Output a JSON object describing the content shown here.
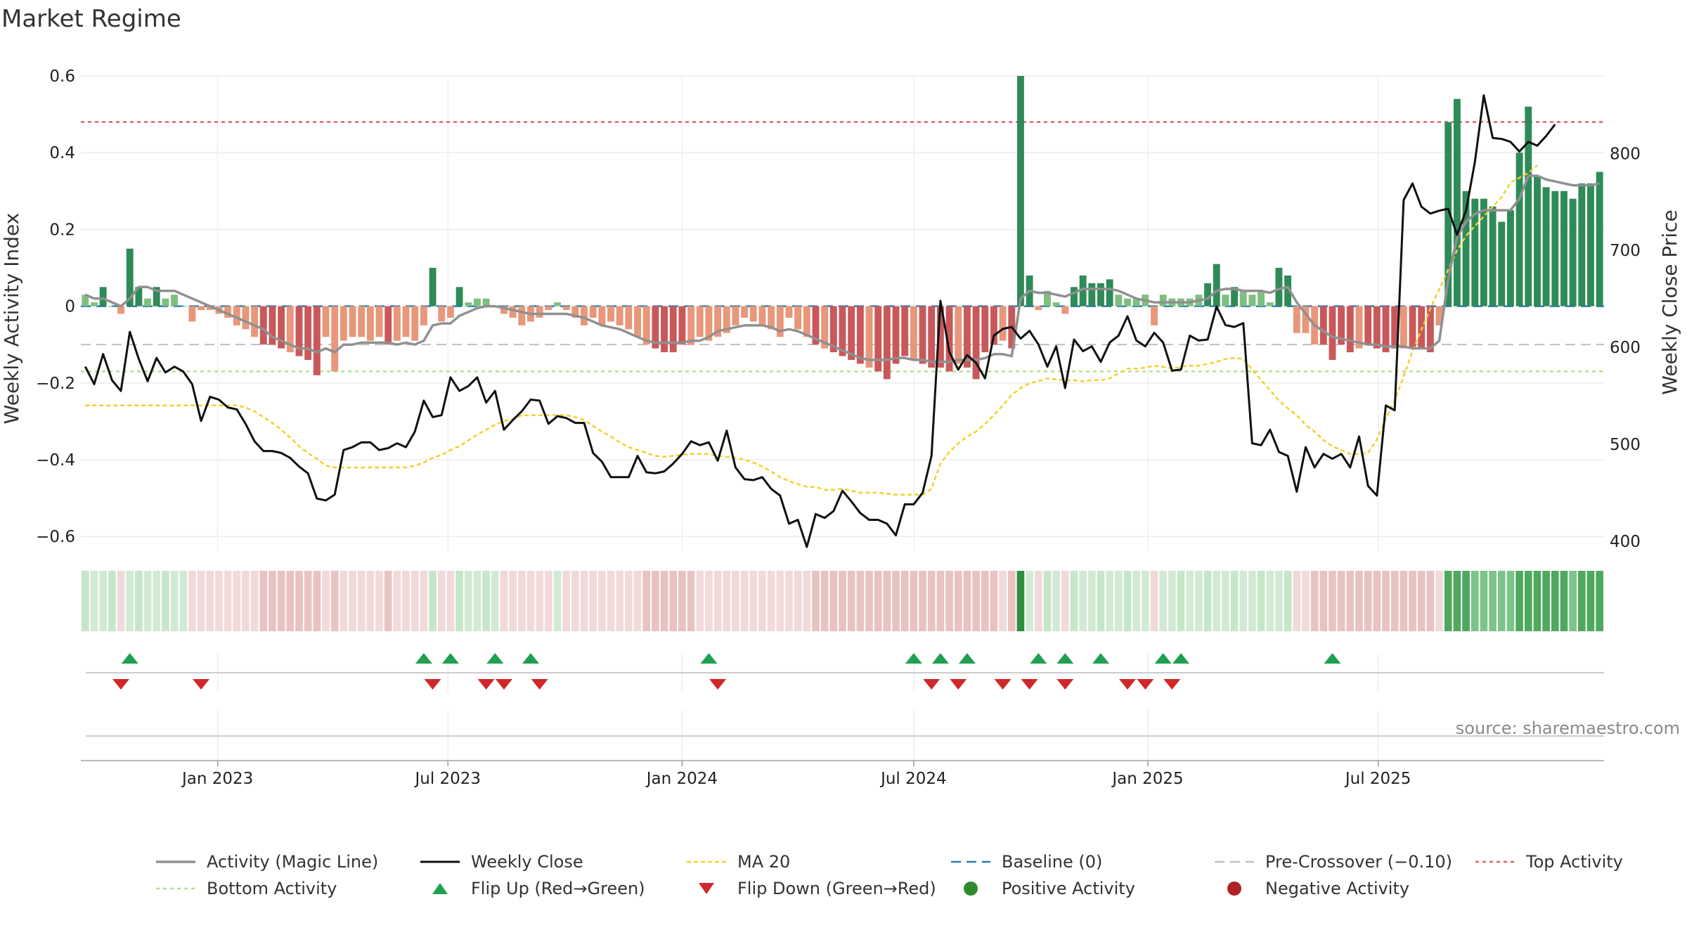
{
  "chart_data": {
    "type": "bar+line",
    "title": "Market Regime",
    "ylabel": "Weekly Activity Index",
    "y2label": "Weekly Close Price",
    "source": "source: sharemaestro.com",
    "ylim": [
      -0.64,
      0.6
    ],
    "y2lim": [
      389,
      880
    ],
    "yticks": [
      0.6,
      0.4,
      0.2,
      0,
      -0.2,
      -0.4,
      -0.6
    ],
    "ytick_labels": [
      "0.6",
      "0.4",
      "0.2",
      "0",
      "−0.2",
      "−0.4",
      "−0.6"
    ],
    "y2ticks": [
      800,
      700,
      600,
      500,
      400
    ],
    "y2tick_labels": [
      "800",
      "700",
      "600",
      "500",
      "400"
    ],
    "x_start": "2022-09-19",
    "week_interval_days": 7,
    "xticks": [
      {
        "date": "2023-01-01",
        "label": "Jan 2023"
      },
      {
        "date": "2023-07-01",
        "label": "Jul 2023"
      },
      {
        "date": "2024-01-01",
        "label": "Jan 2024"
      },
      {
        "date": "2024-07-01",
        "label": "Jul 2024"
      },
      {
        "date": "2025-01-01",
        "label": "Jan 2025"
      },
      {
        "date": "2025-07-01",
        "label": "Jul 2025"
      }
    ],
    "activity": [
      0.03,
      0.01,
      0.05,
      0,
      -0.02,
      0.15,
      0.05,
      0.02,
      0.05,
      0.02,
      0.03,
      0,
      -0.04,
      -0.01,
      -0.01,
      -0.02,
      -0.03,
      -0.05,
      -0.06,
      -0.08,
      -0.1,
      -0.1,
      -0.11,
      -0.12,
      -0.13,
      -0.14,
      -0.18,
      -0.08,
      -0.17,
      -0.09,
      -0.08,
      -0.08,
      -0.09,
      -0.08,
      -0.1,
      -0.09,
      -0.08,
      -0.09,
      -0.05,
      0.1,
      -0.04,
      -0.03,
      0.05,
      0.01,
      0.02,
      0.02,
      0,
      -0.02,
      -0.03,
      -0.05,
      -0.04,
      -0.03,
      -0.01,
      0.01,
      -0.01,
      -0.03,
      -0.05,
      -0.03,
      -0.05,
      -0.04,
      -0.05,
      -0.06,
      -0.08,
      -0.1,
      -0.11,
      -0.12,
      -0.12,
      -0.1,
      -0.1,
      -0.08,
      -0.09,
      -0.08,
      -0.07,
      -0.05,
      -0.03,
      -0.04,
      -0.05,
      -0.06,
      -0.08,
      -0.03,
      -0.06,
      -0.08,
      -0.1,
      -0.11,
      -0.12,
      -0.13,
      -0.14,
      -0.15,
      -0.16,
      -0.17,
      -0.19,
      -0.15,
      -0.13,
      -0.14,
      -0.15,
      -0.16,
      -0.16,
      -0.17,
      -0.15,
      -0.16,
      -0.19,
      -0.12,
      -0.1,
      -0.09,
      -0.11,
      0.6,
      0.08,
      -0.01,
      0.04,
      0.01,
      -0.02,
      0.05,
      0.08,
      0.06,
      0.06,
      0.07,
      0.03,
      0.02,
      0.02,
      0.03,
      -0.05,
      0.03,
      0.02,
      0.02,
      0.02,
      0.03,
      0.06,
      0.11,
      0.03,
      0.05,
      0.04,
      0.03,
      0.04,
      0.01,
      0.1,
      0.08,
      -0.07,
      -0.07,
      -0.1,
      -0.1,
      -0.14,
      -0.1,
      -0.12,
      -0.11,
      -0.1,
      -0.11,
      -0.12,
      -0.11,
      -0.11,
      -0.11,
      -0.11,
      -0.12,
      -0.05,
      0.48,
      0.54,
      0.3,
      0.28,
      0.28,
      0.26,
      0.22,
      0.25,
      0.4,
      0.52,
      0.34,
      0.31,
      0.3,
      0.3,
      0.28,
      0.32,
      0.32,
      0.35
    ],
    "magic_line": [
      0.03,
      0.02,
      0.02,
      0.01,
      0,
      0.02,
      0.05,
      0.05,
      0.04,
      0.04,
      0.04,
      0.03,
      0.02,
      0.01,
      0,
      -0.01,
      -0.02,
      -0.03,
      -0.04,
      -0.05,
      -0.06,
      -0.08,
      -0.09,
      -0.1,
      -0.11,
      -0.11,
      -0.12,
      -0.11,
      -0.12,
      -0.1,
      -0.1,
      -0.095,
      -0.095,
      -0.095,
      -0.095,
      -0.1,
      -0.095,
      -0.1,
      -0.09,
      -0.05,
      -0.045,
      -0.045,
      -0.025,
      -0.015,
      -0.005,
      0,
      0,
      -0.005,
      -0.01,
      -0.015,
      -0.02,
      -0.02,
      -0.02,
      -0.02,
      -0.02,
      -0.025,
      -0.03,
      -0.04,
      -0.05,
      -0.055,
      -0.06,
      -0.07,
      -0.08,
      -0.09,
      -0.095,
      -0.095,
      -0.095,
      -0.095,
      -0.09,
      -0.09,
      -0.08,
      -0.065,
      -0.06,
      -0.055,
      -0.05,
      -0.05,
      -0.05,
      -0.055,
      -0.065,
      -0.06,
      -0.065,
      -0.075,
      -0.085,
      -0.095,
      -0.105,
      -0.115,
      -0.125,
      -0.135,
      -0.14,
      -0.14,
      -0.14,
      -0.135,
      -0.135,
      -0.14,
      -0.14,
      -0.145,
      -0.145,
      -0.145,
      -0.14,
      -0.14,
      -0.14,
      -0.135,
      -0.125,
      -0.125,
      -0.13,
      0.02,
      0.04,
      0.035,
      0.035,
      0.03,
      0.025,
      0.035,
      0.045,
      0.045,
      0.045,
      0.045,
      0.04,
      0.03,
      0.02,
      0.015,
      0.01,
      0.01,
      0.01,
      0.01,
      0.01,
      0.015,
      0.02,
      0.04,
      0.045,
      0.045,
      0.04,
      0.04,
      0.04,
      0.035,
      0.045,
      0.05,
      0.01,
      -0.02,
      -0.05,
      -0.065,
      -0.08,
      -0.085,
      -0.09,
      -0.095,
      -0.1,
      -0.1,
      -0.105,
      -0.105,
      -0.105,
      -0.11,
      -0.11,
      -0.11,
      -0.09,
      0.07,
      0.18,
      0.22,
      0.24,
      0.25,
      0.25,
      0.25,
      0.25,
      0.28,
      0.34,
      0.34,
      0.33,
      0.325,
      0.32,
      0.315,
      0.315,
      0.315,
      0.32
    ],
    "weekly_close": [
      580,
      562,
      593,
      566,
      555,
      616,
      588,
      565,
      589,
      574,
      580,
      575,
      562,
      524,
      549,
      546,
      538,
      536,
      521,
      503,
      493,
      493,
      491,
      486,
      477,
      470,
      444,
      442,
      448,
      494,
      497,
      502,
      502,
      494,
      496,
      501,
      497,
      513,
      545,
      528,
      530,
      569,
      555,
      560,
      569,
      543,
      555,
      515,
      525,
      534,
      546,
      545,
      521,
      529,
      527,
      522,
      522,
      491,
      482,
      466,
      466,
      466,
      488,
      471,
      470,
      472,
      480,
      490,
      503,
      499,
      502,
      483,
      514,
      476,
      464,
      463,
      466,
      454,
      447,
      418,
      422,
      394,
      428,
      424,
      431,
      452,
      441,
      429,
      422,
      422,
      418,
      406,
      438,
      438,
      450,
      488,
      648,
      595,
      577,
      592,
      584,
      568,
      612,
      619,
      621,
      609,
      617,
      603,
      580,
      601,
      558,
      608,
      596,
      601,
      585,
      605,
      612,
      632,
      607,
      601,
      615,
      605,
      576,
      577,
      612,
      607,
      608,
      642,
      623,
      621,
      625,
      501,
      499,
      515,
      492,
      488,
      451,
      497,
      476,
      490,
      485,
      490,
      476,
      508,
      457,
      447,
      540,
      535,
      752,
      769,
      745,
      738,
      741,
      743,
      716,
      741,
      791,
      860,
      816,
      815,
      812,
      802,
      812,
      808,
      818,
      830
    ],
    "ma20": [
      540,
      540,
      540,
      540,
      540,
      540,
      540,
      540,
      540,
      540,
      540,
      540,
      540,
      540,
      540,
      540,
      540,
      540,
      538,
      534,
      528,
      522,
      515,
      507,
      498,
      491,
      485,
      478,
      476,
      476,
      476,
      476,
      476,
      476,
      476,
      476,
      476,
      478,
      481,
      486,
      489,
      494,
      498,
      504,
      510,
      515,
      520,
      524,
      526,
      530,
      530,
      530,
      530,
      530,
      530,
      528,
      525,
      519,
      513,
      508,
      502,
      497,
      494,
      491,
      488,
      487,
      488,
      489,
      490,
      490,
      490,
      488,
      487,
      486,
      484,
      481,
      477,
      472,
      466,
      462,
      459,
      456,
      456,
      453,
      453,
      454,
      452,
      450,
      450,
      450,
      449,
      448,
      448,
      448,
      448,
      454,
      480,
      492,
      501,
      508,
      513,
      521,
      530,
      540,
      551,
      558,
      563,
      565,
      568,
      567,
      566,
      566,
      565,
      566,
      566,
      568,
      573,
      578,
      578,
      579,
      581,
      580,
      578,
      580,
      581,
      581,
      583,
      585,
      588,
      589,
      588,
      577,
      566,
      556,
      545,
      537,
      530,
      520,
      513,
      504,
      498,
      494,
      490,
      490,
      491,
      505,
      526,
      545,
      570,
      596,
      618,
      640,
      660,
      680,
      700,
      715,
      725,
      735,
      745,
      755,
      770,
      775,
      780,
      788
    ],
    "baseline": 0,
    "pre_crossover": -0.1,
    "top_activity": 0.48,
    "bottom_activity": -0.17,
    "flip_up_weeks": [
      5,
      38,
      41,
      46,
      50,
      70,
      93,
      96,
      99,
      107,
      110,
      114,
      121,
      123,
      140
    ],
    "flip_down_weeks": [
      4,
      13,
      39,
      45,
      47,
      51,
      71,
      95,
      98,
      103,
      106,
      110,
      117,
      119,
      122
    ],
    "colors": {
      "pos_strong": "#2e8b57",
      "pos_light": "#7fbf7f",
      "neg_strong": "#c9585a",
      "neg_light": "#e8977a",
      "magic_line": "#909090",
      "close": "#111111",
      "ma20": "#f0d22a",
      "baseline": "#2a7ab8",
      "pre_crossover": "#c0c0c0",
      "top_activity": "#e06070",
      "bottom_activity": "#b6df8a",
      "flip_up": "#20a050",
      "flip_down": "#d02828",
      "positive_activity": "#2e8b2e",
      "negative_activity": "#b22222"
    },
    "legend": [
      {
        "key": "magic",
        "label": "Activity (Magic Line)"
      },
      {
        "key": "close",
        "label": "Weekly Close"
      },
      {
        "key": "ma20",
        "label": "MA 20"
      },
      {
        "key": "baseline",
        "label": "Baseline (0)"
      },
      {
        "key": "pre",
        "label": "Pre-Crossover (−0.10)"
      },
      {
        "key": "top",
        "label": "Top Activity"
      },
      {
        "key": "bottom",
        "label": "Bottom Activity"
      },
      {
        "key": "flipup",
        "label": "Flip Up (Red→Green)"
      },
      {
        "key": "flipdown",
        "label": "Flip Down (Green→Red)"
      },
      {
        "key": "posact",
        "label": "Positive Activity"
      },
      {
        "key": "negact",
        "label": "Negative Activity"
      }
    ]
  }
}
